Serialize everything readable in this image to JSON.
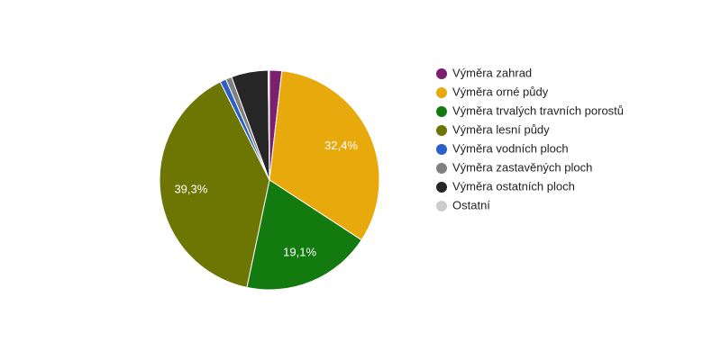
{
  "chart_data": {
    "type": "pie",
    "categories": [
      "Výměra zahrad",
      "Výměra orné půdy",
      "Výměra trvalých travních porostů",
      "Výměra lesní půdy",
      "Výměra vodních ploch",
      "Výměra zastavěných ploch",
      "Výměra ostatních ploch",
      "Ostatní"
    ],
    "values": [
      1.8,
      32.4,
      19.1,
      39.3,
      0.9,
      0.9,
      5.4,
      0.2
    ],
    "value_labels": [
      null,
      "32,4%",
      "19,1%",
      "39,3%",
      null,
      null,
      null,
      null
    ],
    "colors": [
      "#7b1f6e",
      "#e8a90c",
      "#127a0e",
      "#6d7503",
      "#2a5ec8",
      "#808080",
      "#262626",
      "#cccccc"
    ],
    "legend": "right"
  }
}
